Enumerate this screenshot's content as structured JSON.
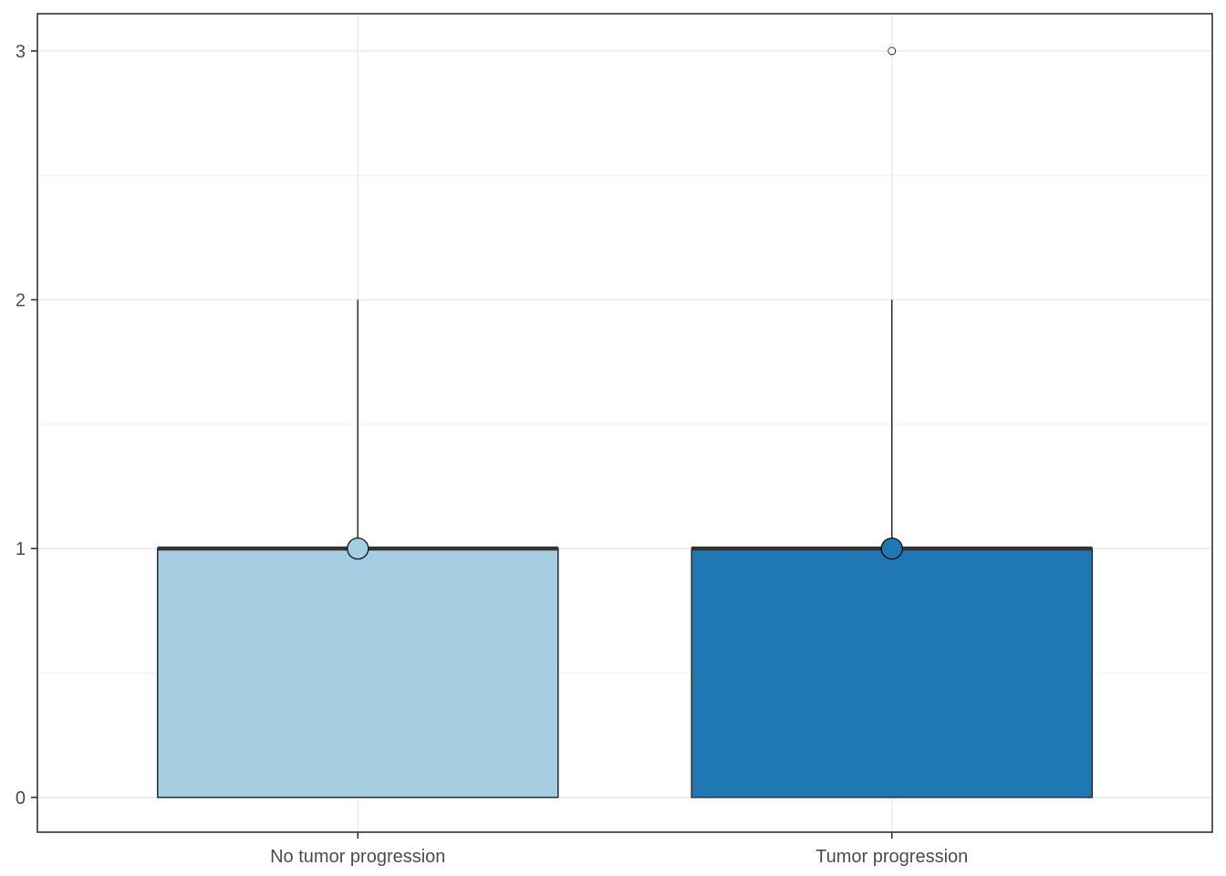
{
  "chart_data": {
    "type": "boxplot",
    "title": "",
    "xlabel": "",
    "ylabel": "",
    "categories": [
      "No tumor progression",
      "Tumor progression"
    ],
    "ylim": [
      -0.14,
      3.15
    ],
    "yticks": [
      0,
      1,
      2,
      3
    ],
    "yminor": [
      0.5,
      1.5,
      2.5
    ],
    "grid": true,
    "boxes": [
      {
        "category": "No tumor progression",
        "lower_whisker": 0,
        "q1": 0,
        "median": 1,
        "q3": 1,
        "upper_whisker": 2,
        "mean": 1,
        "outliers": [],
        "fill": "#a6cee3"
      },
      {
        "category": "Tumor progression",
        "lower_whisker": 0,
        "q1": 0,
        "median": 1,
        "q3": 1,
        "upper_whisker": 2,
        "mean": 1,
        "outliers": [
          3
        ],
        "fill": "#1f78b4"
      }
    ]
  }
}
